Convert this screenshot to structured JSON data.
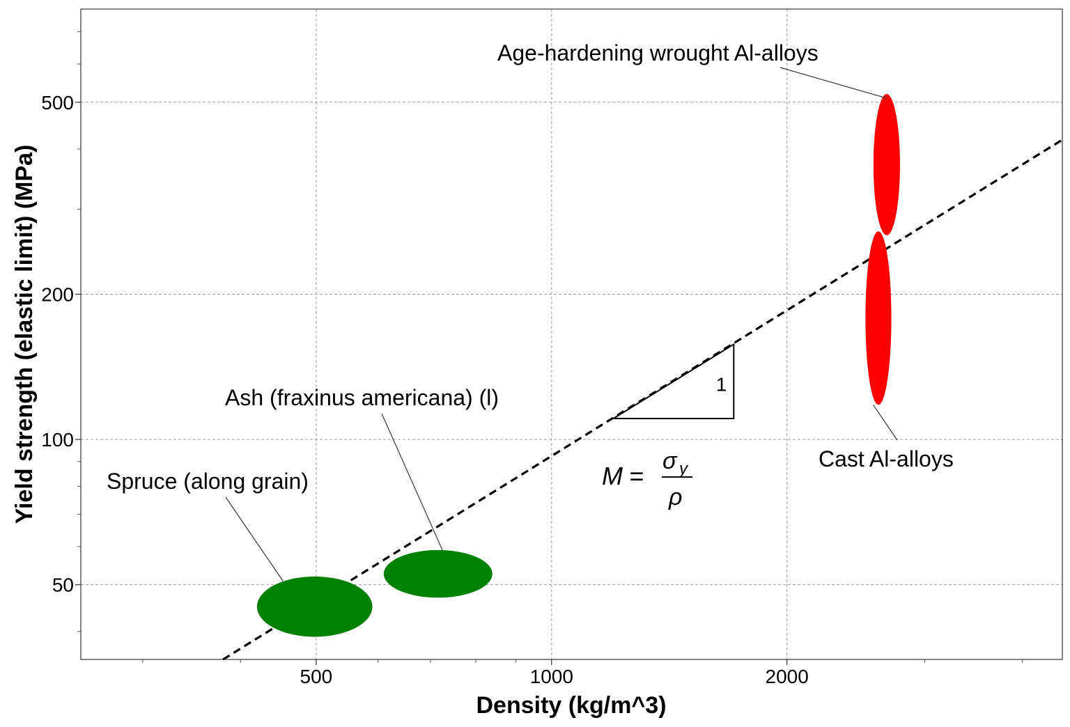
{
  "chart_data": {
    "type": "scatter",
    "xlabel": "Density (kg/m^3)",
    "ylabel": "Yield strength (elastic limit) (MPa)",
    "xscale": "log",
    "yscale": "log",
    "xlim": [
      250,
      4500
    ],
    "ylim": [
      35,
      780
    ],
    "grid": true,
    "x_ticks": [
      500,
      1000,
      2000
    ],
    "y_ticks": [
      50,
      100,
      200,
      500
    ],
    "x_tick_labels": [
      "500",
      "1000",
      "2000"
    ],
    "y_tick_labels": [
      "50",
      "100",
      "200",
      "500"
    ],
    "x_minor_ticks": [
      300,
      400,
      600,
      700,
      800,
      900,
      3000,
      4000
    ],
    "y_minor_ticks": [
      40,
      60,
      70,
      80,
      90,
      300,
      400,
      600,
      700
    ],
    "materials": [
      {
        "label": "Age-hardening wrought Al-alloys",
        "color": "#ff0000",
        "x": [
          2580,
          2790
        ],
        "y": [
          265,
          520
        ]
      },
      {
        "label": "Cast Al-alloys",
        "color": "#ff0000",
        "x": [
          2520,
          2720
        ],
        "y": [
          118,
          270
        ]
      },
      {
        "label": "Spruce (along grain)",
        "color": "#008000",
        "x": [
          420,
          590
        ],
        "y": [
          39,
          52
        ]
      },
      {
        "label": "Ash (fraxinus americana) (l)",
        "color": "#008000",
        "x": [
          610,
          840
        ],
        "y": [
          47,
          59
        ]
      }
    ],
    "guideline": {
      "slope": 1,
      "points": [
        [
          380,
          35
        ],
        [
          4500,
          418
        ]
      ],
      "style": "dashed",
      "triangle_label": "1",
      "index": {
        "lhs": "M",
        "numerator": "σ",
        "numerator_subscript": "y",
        "denominator": "ρ"
      }
    }
  }
}
